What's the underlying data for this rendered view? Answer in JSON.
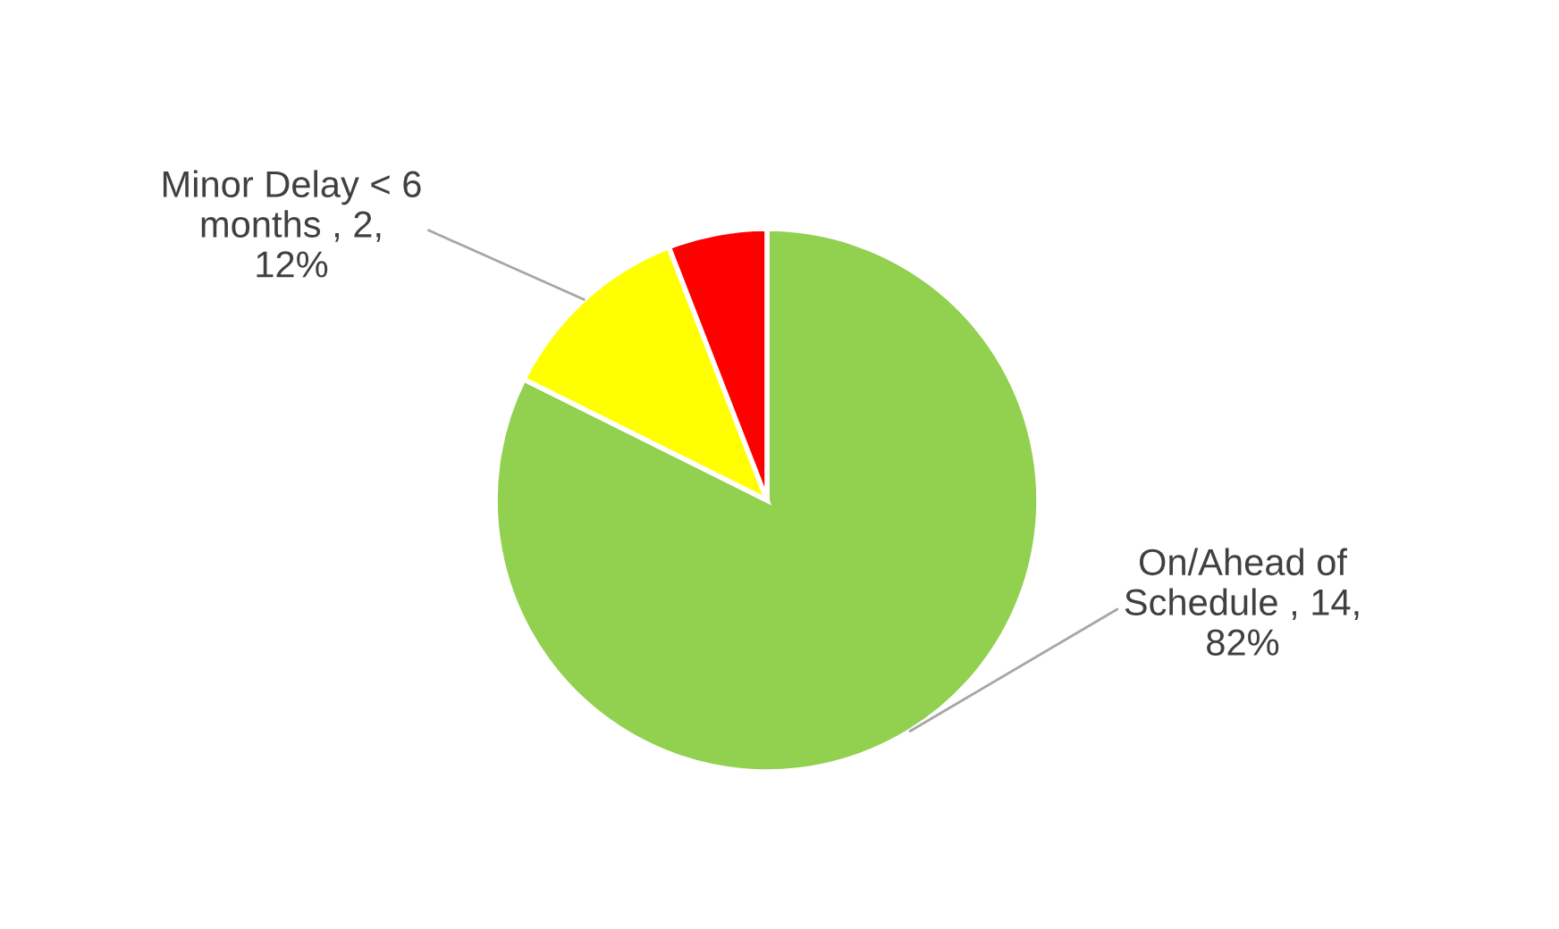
{
  "chart_data": {
    "type": "pie",
    "categories": [
      "On/Ahead of\nSchedule",
      "Minor Delay < 6\nmonths",
      null
    ],
    "values": [
      14,
      2,
      1
    ],
    "colors": [
      "#92d050",
      "#ffff00",
      "#ff0000"
    ],
    "value_labels": [
      "14,\n82%",
      "2,\n12%",
      null
    ],
    "legend": false
  }
}
